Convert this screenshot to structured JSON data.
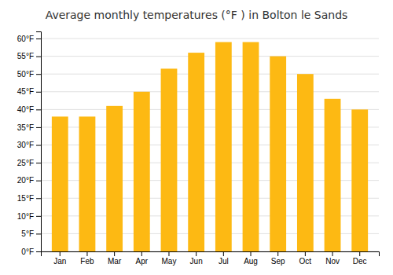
{
  "chart_data": {
    "type": "bar",
    "title": "Average monthly temperatures (°F ) in Bolton le Sands",
    "categories": [
      "Jan",
      "Feb",
      "Mar",
      "Apr",
      "May",
      "Jun",
      "Jul",
      "Aug",
      "Sep",
      "Oct",
      "Nov",
      "Dec"
    ],
    "values": [
      38,
      38,
      41,
      45,
      51.5,
      56,
      59,
      59,
      55,
      50,
      43,
      40
    ],
    "color": "#FDB913",
    "ylim": [
      0,
      62
    ],
    "yticks": [
      {
        "value": 0,
        "label": "0°F"
      },
      {
        "value": 5,
        "label": "5°F"
      },
      {
        "value": 10,
        "label": "10°F"
      },
      {
        "value": 15,
        "label": "15°F"
      },
      {
        "value": 20,
        "label": "20°F"
      },
      {
        "value": 25,
        "label": "25°F"
      },
      {
        "value": 30,
        "label": "30°F"
      },
      {
        "value": 35,
        "label": "35°F"
      },
      {
        "value": 40,
        "label": "40°F"
      },
      {
        "value": 45,
        "label": "45°F"
      },
      {
        "value": 50,
        "label": "50°F"
      },
      {
        "value": 55,
        "label": "55°F"
      },
      {
        "value": 60,
        "label": "60°F"
      }
    ],
    "grid": true
  }
}
